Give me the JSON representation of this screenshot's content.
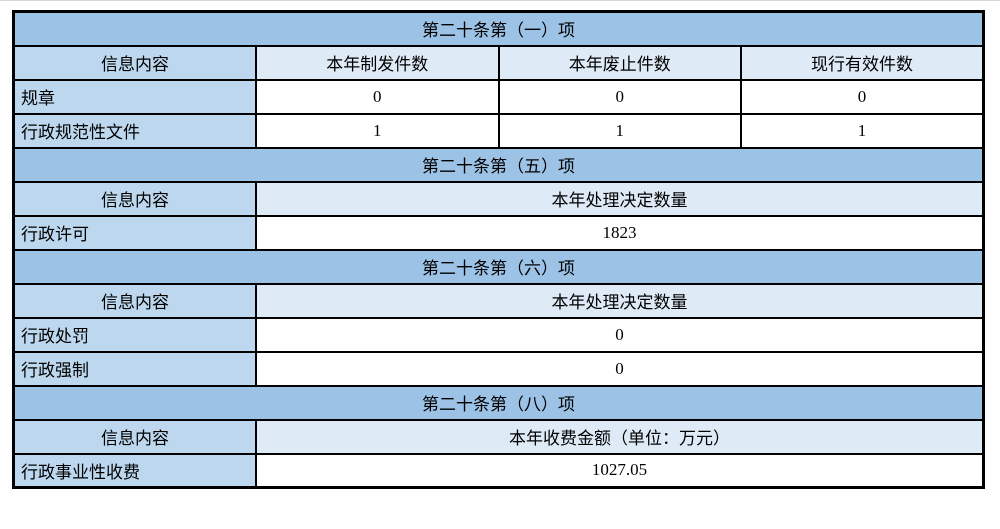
{
  "page": {
    "background": "#ffffff",
    "top_line_color": "#d8d8d8"
  },
  "colors": {
    "section_header_bg": "#9CC2E5",
    "label_bg": "#BDD7EE",
    "subheader_bg": "#DEEBF7",
    "data_cell_bg": "#ffffff",
    "border": "#000000",
    "text": "#000000"
  },
  "table": {
    "column_count": 4,
    "sections": [
      {
        "title": "第二十条第（一）项",
        "columns": [
          "信息内容",
          "本年制发件数",
          "本年废止件数",
          "现行有效件数"
        ],
        "rows": [
          {
            "label": "规章",
            "values": [
              "0",
              "0",
              "0"
            ]
          },
          {
            "label": "行政规范性文件",
            "values": [
              "1",
              "1",
              "1"
            ]
          }
        ]
      },
      {
        "title": "第二十条第（五）项",
        "columns": [
          "信息内容",
          "本年处理决定数量"
        ],
        "rows": [
          {
            "label": "行政许可",
            "values": [
              "1823"
            ]
          }
        ]
      },
      {
        "title": "第二十条第（六）项",
        "columns": [
          "信息内容",
          "本年处理决定数量"
        ],
        "rows": [
          {
            "label": "行政处罚",
            "values": [
              "0"
            ]
          },
          {
            "label": "行政强制",
            "values": [
              "0"
            ]
          }
        ]
      },
      {
        "title": "第二十条第（八）项",
        "columns": [
          "信息内容",
          "本年收费金额（单位：万元）"
        ],
        "rows": [
          {
            "label": "行政事业性收费",
            "values": [
              "1027.05"
            ]
          }
        ]
      }
    ]
  }
}
